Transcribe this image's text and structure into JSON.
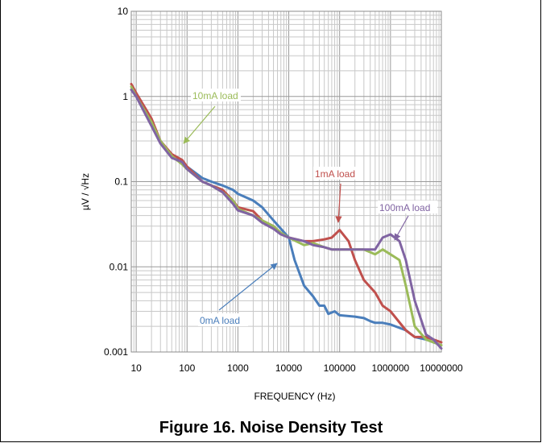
{
  "figure": {
    "caption": "Figure 16. Noise Density Test"
  },
  "chart_data": {
    "type": "line",
    "title": "",
    "xlabel": "FREQUENCY (Hz)",
    "ylabel": "µV / √Hz",
    "x_scale": "log",
    "y_scale": "log",
    "xlim": [
      8,
      10000000
    ],
    "ylim": [
      0.001,
      10
    ],
    "grid": true,
    "x_ticks": [
      "10",
      "100",
      "1000",
      "10000",
      "100000",
      "1000000",
      "10000000"
    ],
    "y_ticks": [
      "0.001",
      "0.01",
      "0.1",
      "1",
      "10"
    ],
    "series": [
      {
        "name": "0mA load",
        "color": "#4a7ebb",
        "x": [
          8,
          10,
          20,
          30,
          50,
          80,
          100,
          200,
          300,
          500,
          800,
          1000,
          2000,
          3000,
          5000,
          7000,
          10000,
          13000,
          20000,
          30000,
          40000,
          50000,
          60000,
          80000,
          100000,
          200000,
          300000,
          400000,
          500000,
          700000,
          1000000,
          2000000,
          3000000,
          5000000,
          7000000,
          10000000
        ],
        "y": [
          1.2,
          1.0,
          0.5,
          0.3,
          0.2,
          0.17,
          0.15,
          0.11,
          0.1,
          0.09,
          0.08,
          0.072,
          0.06,
          0.05,
          0.035,
          0.028,
          0.022,
          0.012,
          0.006,
          0.0045,
          0.0035,
          0.0035,
          0.0028,
          0.003,
          0.0027,
          0.0026,
          0.0025,
          0.0023,
          0.0022,
          0.0022,
          0.0021,
          0.0018,
          0.0015,
          0.0014,
          0.0013,
          0.0012
        ]
      },
      {
        "name": "1mA load",
        "color": "#c0504d",
        "x": [
          8,
          10,
          20,
          30,
          50,
          80,
          100,
          200,
          300,
          500,
          800,
          1000,
          2000,
          3000,
          5000,
          7000,
          10000,
          20000,
          30000,
          50000,
          70000,
          100000,
          150000,
          200000,
          300000,
          500000,
          700000,
          1000000,
          2000000,
          3000000,
          5000000,
          7000000,
          10000000
        ],
        "y": [
          1.4,
          1.1,
          0.55,
          0.3,
          0.21,
          0.18,
          0.15,
          0.1,
          0.09,
          0.08,
          0.06,
          0.05,
          0.045,
          0.035,
          0.03,
          0.025,
          0.022,
          0.02,
          0.02,
          0.021,
          0.022,
          0.027,
          0.02,
          0.012,
          0.007,
          0.005,
          0.0035,
          0.003,
          0.0018,
          0.0015,
          0.0015,
          0.0014,
          0.0013
        ]
      },
      {
        "name": "10mA load",
        "color": "#9bbb59",
        "x": [
          8,
          10,
          20,
          30,
          50,
          80,
          100,
          200,
          300,
          500,
          800,
          1000,
          2000,
          3000,
          5000,
          7000,
          10000,
          20000,
          30000,
          50000,
          70000,
          100000,
          200000,
          300000,
          500000,
          700000,
          1000000,
          1500000,
          2000000,
          3000000,
          5000000,
          7000000,
          10000000
        ],
        "y": [
          1.3,
          1.0,
          0.5,
          0.3,
          0.2,
          0.16,
          0.14,
          0.1,
          0.09,
          0.075,
          0.06,
          0.048,
          0.04,
          0.035,
          0.03,
          0.025,
          0.022,
          0.018,
          0.019,
          0.017,
          0.016,
          0.016,
          0.016,
          0.016,
          0.014,
          0.016,
          0.014,
          0.012,
          0.006,
          0.002,
          0.0014,
          0.0013,
          0.0012
        ]
      },
      {
        "name": "100mA load",
        "color": "#8064a2",
        "x": [
          8,
          10,
          20,
          30,
          50,
          80,
          100,
          200,
          300,
          500,
          800,
          1000,
          2000,
          3000,
          5000,
          7000,
          10000,
          20000,
          30000,
          50000,
          70000,
          100000,
          200000,
          300000,
          500000,
          700000,
          1000000,
          1500000,
          2000000,
          3000000,
          5000000,
          7000000,
          10000000
        ],
        "y": [
          1.2,
          1.0,
          0.45,
          0.28,
          0.19,
          0.17,
          0.14,
          0.1,
          0.09,
          0.075,
          0.055,
          0.046,
          0.04,
          0.033,
          0.028,
          0.024,
          0.022,
          0.02,
          0.018,
          0.017,
          0.016,
          0.016,
          0.016,
          0.016,
          0.016,
          0.022,
          0.024,
          0.02,
          0.012,
          0.004,
          0.0016,
          0.0014,
          0.0011
        ]
      }
    ],
    "annotations": [
      {
        "text": "10mA load",
        "series": "10mA load"
      },
      {
        "text": "1mA load",
        "series": "1mA load"
      },
      {
        "text": "100mA load",
        "series": "100mA load"
      },
      {
        "text": "0mA load",
        "series": "0mA load"
      }
    ]
  }
}
